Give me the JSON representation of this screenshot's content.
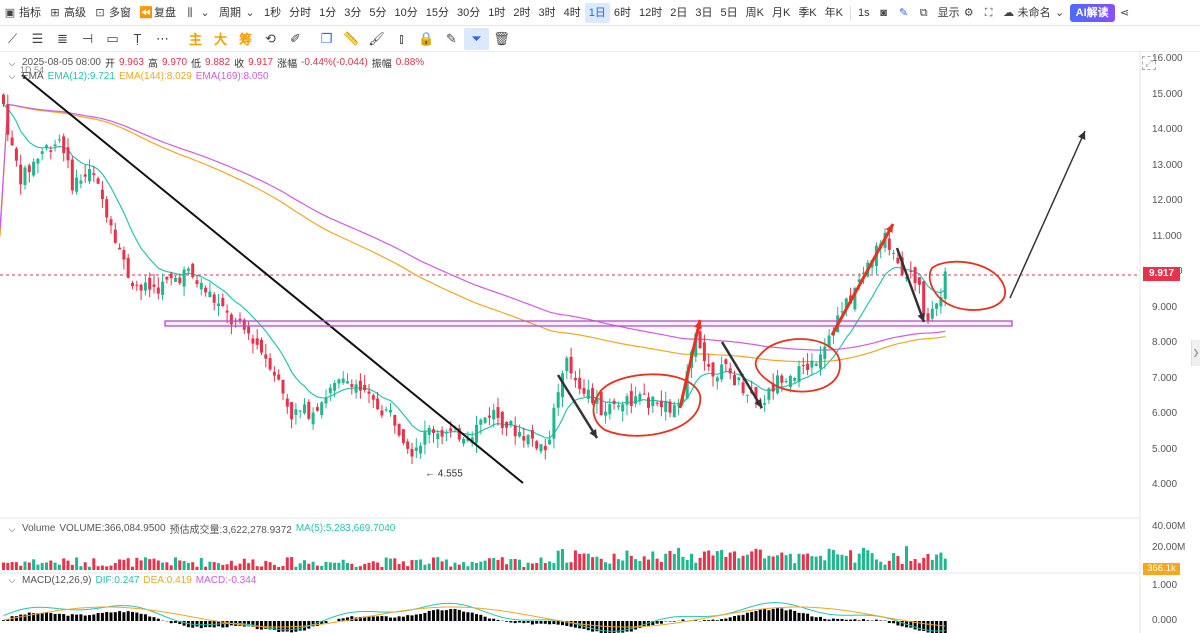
{
  "toolbar": {
    "indicators": "指标",
    "advanced": "高级",
    "multi_window": "多窗",
    "replay": "复盘",
    "period": "周期",
    "intervals": [
      "1秒",
      "分时",
      "1分",
      "3分",
      "5分",
      "10分",
      "15分",
      "30分",
      "1时",
      "2时",
      "3时",
      "4时",
      "1日",
      "6时",
      "12时",
      "2日",
      "3日",
      "5日",
      "周K",
      "月K",
      "季K",
      "年K"
    ],
    "active_interval": "1日",
    "seconds": "1s",
    "display": "显示",
    "unnamed": "未命名",
    "ai_read": "AI解读"
  },
  "draw_tools": {
    "main": "主",
    "big": "大",
    "chip": "筹"
  },
  "legend": {
    "date": "2025-08-05 08:00",
    "open_label": "开",
    "open": "9.963",
    "high_label": "高",
    "high": "9.970",
    "low_label": "低",
    "low": "9.882",
    "close_label": "收",
    "close": "9.917",
    "change_label": "涨幅",
    "change": "-0.44%(-0.044)",
    "amp_label": "振幅",
    "amp": "0.88%",
    "interval_tag": "1D 54",
    "ema_title": "EMA",
    "ema12": "EMA(12):9.721",
    "ema144": "EMA(144):8.029",
    "ema169": "EMA(169):8.050"
  },
  "volume_legend": {
    "title": "Volume",
    "volume": "VOLUME:366,084.9500",
    "estimate": "预估成交量:3,622,278.9372",
    "ma5": "MA(5):5,283,669.7040"
  },
  "macd_legend": {
    "title": "MACD(12,26,9)",
    "dif": "DIF:0.247",
    "dea": "DEA:0.419",
    "macd": "MACD:-0.344"
  },
  "price_axis": [
    "16.000",
    "15.000",
    "14.000",
    "13.000",
    "12.000",
    "11.000",
    "10.000",
    "9.000",
    "8.000",
    "7.000",
    "6.000",
    "5.000",
    "4.000"
  ],
  "volume_axis": [
    "40.00M",
    "20.00M"
  ],
  "macd_axis": [
    "1.000",
    "0.000"
  ],
  "current_price": "9.917",
  "current_volume": "366.1k",
  "low_marker": "4.555",
  "colors": {
    "up": "#1eb88f",
    "down": "#e8324a",
    "ema12": "#26c6b0",
    "ema144": "#f5a623",
    "ema169": "#d05ce3",
    "accent": "#2962ff"
  }
}
